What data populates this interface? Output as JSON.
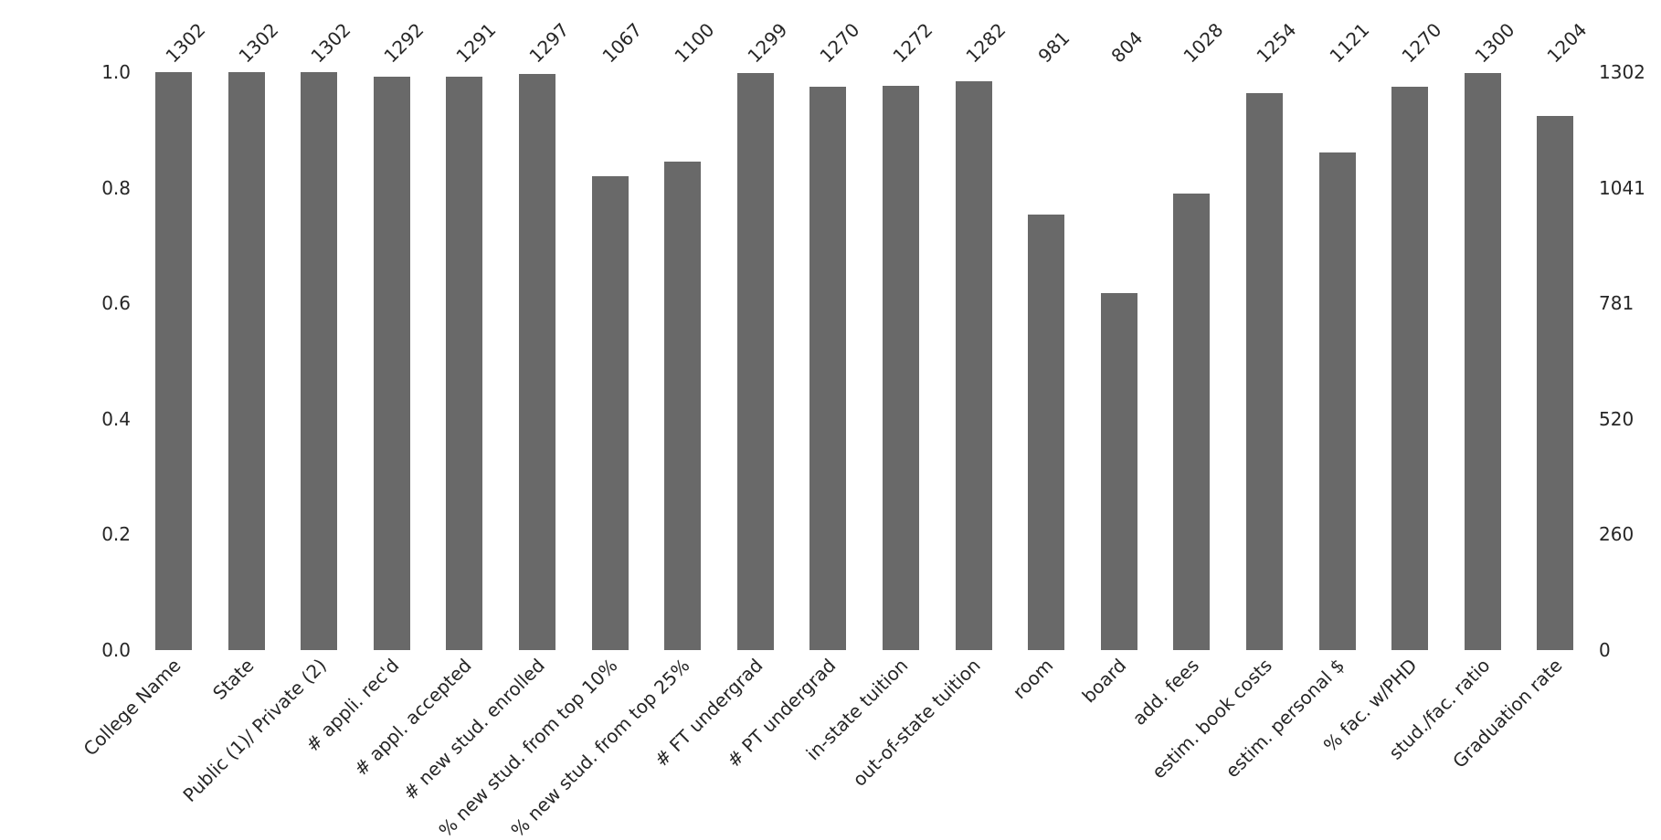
{
  "figure": {
    "background": "#ffffff",
    "bar_color": "#696969",
    "text_color": "#262626"
  },
  "chart_data": {
    "type": "bar",
    "categories": [
      "College Name",
      "State",
      "Public (1)/ Private (2)",
      "# appli. rec'd",
      "# appl. accepted",
      "# new stud. enrolled",
      "% new stud. from top 10%",
      "% new stud. from top 25%",
      "# FT undergrad",
      "# PT undergrad",
      "in-state tuition",
      "out-of-state tuition",
      "room",
      "board",
      "add. fees",
      "estim. book costs",
      "estim. personal $",
      "% fac. w/PHD",
      "stud./fac. ratio",
      "Graduation rate"
    ],
    "values": [
      1302,
      1302,
      1302,
      1292,
      1291,
      1297,
      1067,
      1100,
      1299,
      1270,
      1272,
      1282,
      981,
      804,
      1028,
      1254,
      1121,
      1270,
      1300,
      1204
    ],
    "xlabel": "",
    "ylabel": "",
    "left_axis": {
      "ticks": [
        "0.0",
        "0.2",
        "0.4",
        "0.6",
        "0.8",
        "1.0"
      ],
      "ylim": [
        0.0,
        1.0
      ]
    },
    "right_axis": {
      "ticks": [
        "0",
        "260",
        "520",
        "781",
        "1041",
        "1302"
      ],
      "ylim": [
        0,
        1302
      ]
    },
    "max_value": 1302,
    "grid": false,
    "legend": null,
    "bar_label_rotation_deg": 45,
    "x_tick_rotation_deg": 45
  }
}
